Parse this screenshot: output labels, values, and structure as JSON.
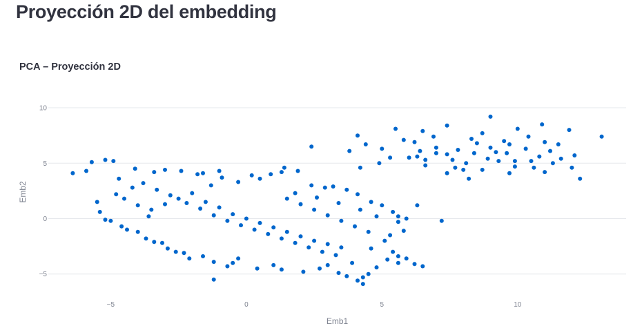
{
  "page": {
    "title": "Proyección 2D del embedding"
  },
  "chart_data": {
    "type": "scatter",
    "title": "PCA – Proyección 2D",
    "xlabel": "Emb1",
    "ylabel": "Emb2",
    "xlim": [
      -7.3,
      14.0
    ],
    "ylim": [
      -7.2,
      11.0
    ],
    "x_ticks": [
      -5,
      0,
      5,
      10
    ],
    "y_ticks": [
      -5,
      0,
      5,
      10
    ],
    "grid": true,
    "legend": "none",
    "point_color": "#0066cc",
    "series": [
      {
        "points": [
          [
            -6.4,
            4.1
          ],
          [
            -5.7,
            5.1
          ],
          [
            -5.2,
            5.3
          ],
          [
            -4.9,
            5.2
          ],
          [
            -5.9,
            4.3
          ],
          [
            -5.5,
            1.5
          ],
          [
            -5.4,
            0.6
          ],
          [
            -5.0,
            -0.2
          ],
          [
            -5.2,
            -0.1
          ],
          [
            -4.6,
            -0.7
          ],
          [
            -4.0,
            -1.2
          ],
          [
            -3.7,
            -1.8
          ],
          [
            -3.1,
            -2.2
          ],
          [
            -2.6,
            -3.0
          ],
          [
            -2.3,
            -3.1
          ],
          [
            -2.1,
            -3.6
          ],
          [
            -1.2,
            -3.9
          ],
          [
            -0.7,
            -4.3
          ],
          [
            -0.3,
            -3.6
          ],
          [
            0.4,
            -4.5
          ],
          [
            -0.5,
            -4.0
          ],
          [
            -1.6,
            -3.4
          ],
          [
            -2.9,
            -2.7
          ],
          [
            -3.4,
            -2.1
          ],
          [
            -4.4,
            -1.0
          ],
          [
            -4.8,
            2.2
          ],
          [
            -4.7,
            3.6
          ],
          [
            -4.1,
            4.5
          ],
          [
            -3.4,
            4.2
          ],
          [
            -3.0,
            4.4
          ],
          [
            -2.4,
            4.3
          ],
          [
            -1.8,
            4.0
          ],
          [
            -1.6,
            4.1
          ],
          [
            -1.0,
            4.3
          ],
          [
            -0.3,
            3.3
          ],
          [
            -0.9,
            3.7
          ],
          [
            -1.3,
            3.0
          ],
          [
            0.2,
            3.9
          ],
          [
            0.5,
            3.6
          ],
          [
            0.9,
            4.0
          ],
          [
            1.3,
            4.2
          ],
          [
            1.4,
            4.6
          ],
          [
            1.9,
            4.3
          ],
          [
            2.4,
            3.0
          ],
          [
            2.9,
            2.8
          ],
          [
            3.2,
            2.9
          ],
          [
            3.7,
            2.6
          ],
          [
            4.1,
            2.2
          ],
          [
            4.6,
            1.5
          ],
          [
            5.0,
            1.2
          ],
          [
            5.4,
            0.6
          ],
          [
            5.6,
            0.2
          ],
          [
            5.9,
            0.0
          ],
          [
            5.6,
            -0.3
          ],
          [
            5.8,
            -1.1
          ],
          [
            6.3,
            1.2
          ],
          [
            5.3,
            -1.5
          ],
          [
            5.1,
            -2.0
          ],
          [
            4.6,
            -2.7
          ],
          [
            5.4,
            -3.0
          ],
          [
            5.6,
            -3.4
          ],
          [
            5.2,
            -3.7
          ],
          [
            5.6,
            -4.0
          ],
          [
            5.9,
            -3.6
          ],
          [
            6.2,
            -4.1
          ],
          [
            6.5,
            -4.3
          ],
          [
            4.8,
            -4.4
          ],
          [
            4.5,
            -5.0
          ],
          [
            4.3,
            -5.3
          ],
          [
            4.1,
            -5.6
          ],
          [
            4.3,
            -5.9
          ],
          [
            3.7,
            -5.2
          ],
          [
            3.4,
            -4.9
          ],
          [
            2.7,
            -4.5
          ],
          [
            2.1,
            -4.8
          ],
          [
            1.3,
            -4.6
          ],
          [
            1.0,
            -4.2
          ],
          [
            -1.2,
            -5.5
          ],
          [
            3.9,
            -4.0
          ],
          [
            3.0,
            -4.2
          ],
          [
            2.4,
            6.5
          ],
          [
            5.3,
            5.5
          ],
          [
            6.0,
            5.5
          ],
          [
            6.3,
            5.6
          ],
          [
            -3.5,
            0.8
          ],
          [
            -3.0,
            1.3
          ],
          [
            -2.5,
            1.8
          ],
          [
            -2.0,
            2.3
          ],
          [
            -1.5,
            1.5
          ],
          [
            -1.0,
            1.0
          ],
          [
            -0.5,
            0.4
          ],
          [
            0.0,
            0.0
          ],
          [
            0.5,
            -0.4
          ],
          [
            1.0,
            -0.8
          ],
          [
            1.5,
            -1.2
          ],
          [
            2.0,
            -1.6
          ],
          [
            2.5,
            -2.0
          ],
          [
            3.0,
            -2.3
          ],
          [
            3.5,
            -2.6
          ],
          [
            -4.2,
            2.8
          ],
          [
            -3.8,
            3.2
          ],
          [
            -3.3,
            2.6
          ],
          [
            -2.8,
            2.1
          ],
          [
            -2.2,
            1.4
          ],
          [
            -1.7,
            0.9
          ],
          [
            -1.2,
            0.3
          ],
          [
            -0.7,
            -0.2
          ],
          [
            -0.2,
            -0.6
          ],
          [
            0.3,
            -1.0
          ],
          [
            0.8,
            -1.4
          ],
          [
            1.3,
            -1.8
          ],
          [
            1.8,
            -2.2
          ],
          [
            2.3,
            -2.6
          ],
          [
            2.8,
            -3.0
          ],
          [
            3.3,
            -3.3
          ],
          [
            1.5,
            1.8
          ],
          [
            2.0,
            1.3
          ],
          [
            2.5,
            0.8
          ],
          [
            3.0,
            0.3
          ],
          [
            3.5,
            -0.2
          ],
          [
            4.0,
            -0.7
          ],
          [
            4.5,
            -1.2
          ],
          [
            1.8,
            2.3
          ],
          [
            2.6,
            1.9
          ],
          [
            3.4,
            1.4
          ],
          [
            4.2,
            0.8
          ],
          [
            4.8,
            0.2
          ],
          [
            -4.5,
            1.8
          ],
          [
            -4.0,
            1.2
          ],
          [
            -3.6,
            0.2
          ],
          [
            7.8,
            6.2
          ],
          [
            8.5,
            6.8
          ],
          [
            9.2,
            6.0
          ],
          [
            7.4,
            5.8
          ],
          [
            8.1,
            5.0
          ],
          [
            8.9,
            5.4
          ],
          [
            9.6,
            5.9
          ],
          [
            7.0,
            6.4
          ],
          [
            6.6,
            5.3
          ],
          [
            7.7,
            4.6
          ],
          [
            8.7,
            4.4
          ],
          [
            9.9,
            5.2
          ],
          [
            10.3,
            6.3
          ],
          [
            10.8,
            5.6
          ],
          [
            11.2,
            6.1
          ],
          [
            11.6,
            5.4
          ],
          [
            12.3,
            3.6
          ],
          [
            13.1,
            7.4
          ],
          [
            11.9,
            8.0
          ],
          [
            10.9,
            8.5
          ],
          [
            10.0,
            8.1
          ],
          [
            9.0,
            9.2
          ],
          [
            8.3,
            7.2
          ],
          [
            7.4,
            8.4
          ],
          [
            6.5,
            7.9
          ],
          [
            5.5,
            8.1
          ],
          [
            4.1,
            7.5
          ],
          [
            4.9,
            5.0
          ],
          [
            4.2,
            4.6
          ],
          [
            6.6,
            4.8
          ],
          [
            7.4,
            4.1
          ],
          [
            8.2,
            3.6
          ],
          [
            9.7,
            4.1
          ],
          [
            10.6,
            4.6
          ],
          [
            11.3,
            5.0
          ],
          [
            12.0,
            4.6
          ],
          [
            11.0,
            4.2
          ],
          [
            7.2,
            -0.2
          ],
          [
            3.8,
            6.1
          ],
          [
            4.4,
            6.7
          ],
          [
            5.0,
            6.3
          ],
          [
            5.8,
            7.1
          ],
          [
            6.2,
            6.9
          ],
          [
            6.9,
            7.4
          ],
          [
            8.7,
            7.7
          ],
          [
            9.5,
            7.0
          ],
          [
            10.4,
            7.4
          ],
          [
            11.5,
            6.7
          ],
          [
            12.1,
            5.7
          ],
          [
            9.9,
            4.7
          ],
          [
            8.0,
            4.4
          ],
          [
            7.6,
            5.3
          ],
          [
            7.0,
            5.9
          ],
          [
            6.4,
            6.1
          ],
          [
            8.4,
            5.9
          ],
          [
            9.0,
            6.4
          ],
          [
            9.7,
            6.7
          ],
          [
            10.5,
            5.2
          ],
          [
            11.0,
            6.9
          ],
          [
            9.3,
            5.2
          ]
        ]
      }
    ]
  }
}
